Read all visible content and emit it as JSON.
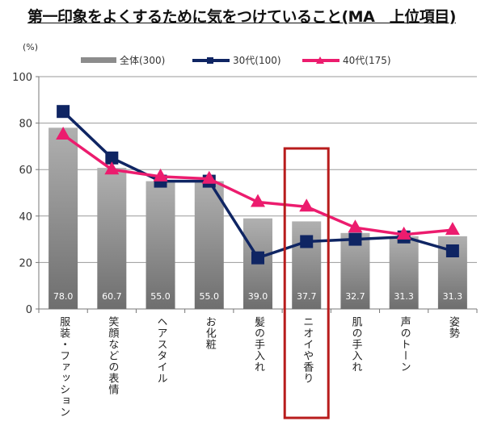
{
  "chart_data": {
    "type": "bar",
    "title": "第一印象をよくするために気をつけていること(MA　上位項目)",
    "ylabel": "(%)",
    "ylim": [
      0,
      100
    ],
    "yticks": [
      "0",
      "20",
      "40",
      "60",
      "80",
      "100"
    ],
    "grid": true,
    "legend_position": "top",
    "categories": [
      "服装・ファッション",
      "笑顔などの表情",
      "ヘアスタイル",
      "お化粧",
      "髪の手入れ",
      "ニオイや香り",
      "肌の手入れ",
      "声のトーン",
      "姿勢"
    ],
    "series": [
      {
        "name": "全体(300)",
        "type": "bar",
        "color": "#8c8c8c",
        "values": [
          78.0,
          60.7,
          55.0,
          55.0,
          39.0,
          37.7,
          32.7,
          31.3,
          31.3
        ],
        "labels": [
          "78.0",
          "60.7",
          "55.0",
          "55.0",
          "39.0",
          "37.7",
          "32.7",
          "31.3",
          "31.3"
        ]
      },
      {
        "name": "30代(100)",
        "type": "line",
        "marker": "square",
        "color": "#0f2563",
        "values": [
          85,
          65,
          55,
          55,
          22,
          29,
          30,
          31,
          25
        ]
      },
      {
        "name": "40代(175)",
        "type": "line",
        "marker": "triangle",
        "color": "#ec1c6e",
        "values": [
          75,
          60,
          57,
          56,
          46,
          44,
          35,
          32,
          34
        ]
      }
    ],
    "highlight_category": "ニオイや香り",
    "highlight_color": "#b81c1c"
  }
}
